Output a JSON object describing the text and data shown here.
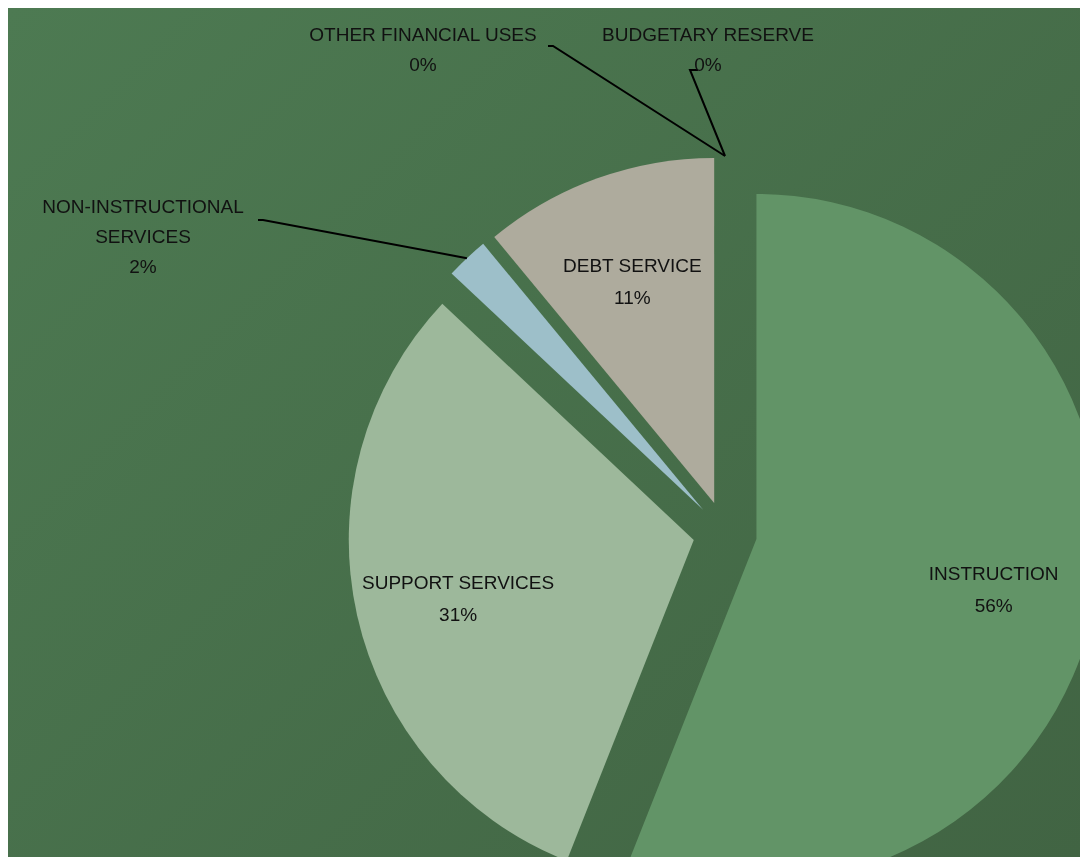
{
  "chart_data": {
    "type": "pie",
    "categories": [
      "INSTRUCTION",
      "SUPPORT SERVICES",
      "NON-INSTRUCTIONAL SERVICES",
      "DEBT SERVICE",
      "OTHER FINANCIAL USES",
      "BUDGETARY RESERVE"
    ],
    "values": [
      56,
      31,
      2,
      11,
      0,
      0
    ],
    "value_labels": [
      "56%",
      "31%",
      "2%",
      "11%",
      "0%",
      "0%"
    ],
    "colors": [
      "#629467",
      "#9db89b",
      "#9dbfc9",
      "#aeab9d",
      "#b8c4b0",
      "#e6b3a8"
    ]
  }
}
